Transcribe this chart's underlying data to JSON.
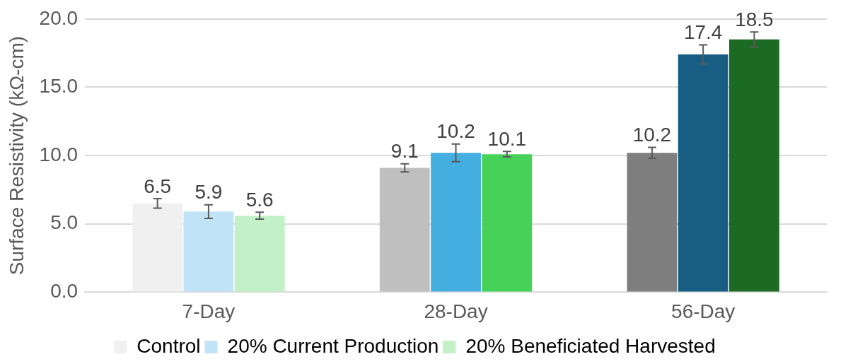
{
  "chart_data": {
    "type": "bar",
    "ylabel": "Surface Resistivity (kΩ-cm)",
    "categories": [
      "7-Day",
      "28-Day",
      "56-Day"
    ],
    "series": [
      {
        "name": "Control",
        "color": "#f0f0f0",
        "colors": [
          "#f0f0f0",
          "#bfbfbf",
          "#7f7f7f"
        ],
        "values": [
          6.5,
          9.1,
          10.2
        ],
        "errors": [
          0.35,
          0.3,
          0.4
        ]
      },
      {
        "name": "20% Current Production",
        "color": "#c0e4f5",
        "colors": [
          "#c0e4f5",
          "#45aee0",
          "#175e82"
        ],
        "values": [
          5.9,
          10.2,
          17.4
        ],
        "errors": [
          0.5,
          0.65,
          0.7
        ]
      },
      {
        "name": "20% Beneficiated Harvested",
        "color": "#c2f0c7",
        "colors": [
          "#c2f0c7",
          "#46d158",
          "#1b6b25"
        ],
        "values": [
          5.6,
          10.1,
          18.5
        ],
        "errors": [
          0.25,
          0.2,
          0.55
        ]
      }
    ],
    "ylim": [
      0,
      20
    ],
    "yticks": [
      {
        "value": 0,
        "label": "0.0"
      },
      {
        "value": 5,
        "label": "5.0"
      },
      {
        "value": 10,
        "label": "10.0"
      },
      {
        "value": 15,
        "label": "15.0"
      },
      {
        "value": 20,
        "label": "20.0"
      }
    ],
    "grid": "y",
    "legend": "bottom",
    "data_labels": true
  }
}
